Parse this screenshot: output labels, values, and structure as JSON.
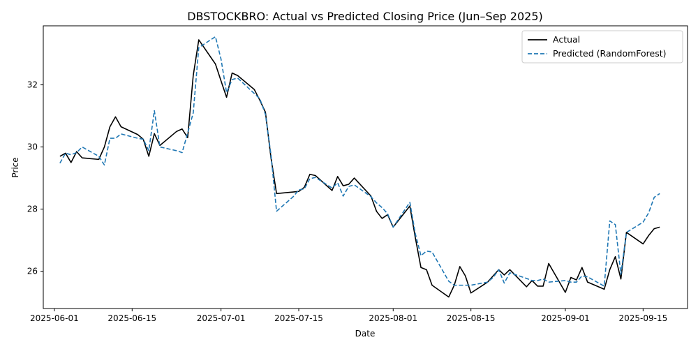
{
  "chart_data": {
    "type": "line",
    "title": "DBSTOCKBRO: Actual vs Predicted Closing Price (Jun–Sep 2025)",
    "xlabel": "Date",
    "ylabel": "Price",
    "xlim": [
      "2025-05-30",
      "2025-09-23"
    ],
    "ylim": [
      24.8,
      33.9
    ],
    "x_ticks": [
      "2025-06-01",
      "2025-06-15",
      "2025-07-01",
      "2025-07-15",
      "2025-08-01",
      "2025-08-15",
      "2025-09-01",
      "2025-09-15"
    ],
    "y_ticks": [
      26,
      28,
      30,
      32
    ],
    "grid": false,
    "legend_position": "top-right",
    "series": [
      {
        "name": "Actual",
        "color": "#000000",
        "style": "solid",
        "x": [
          "2025-06-02",
          "2025-06-03",
          "2025-06-04",
          "2025-06-05",
          "2025-06-06",
          "2025-06-09",
          "2025-06-10",
          "2025-06-11",
          "2025-06-12",
          "2025-06-13",
          "2025-06-16",
          "2025-06-17",
          "2025-06-18",
          "2025-06-19",
          "2025-06-20",
          "2025-06-23",
          "2025-06-24",
          "2025-06-25",
          "2025-06-26",
          "2025-06-27",
          "2025-06-30",
          "2025-07-01",
          "2025-07-02",
          "2025-07-03",
          "2025-07-04",
          "2025-07-07",
          "2025-07-08",
          "2025-07-09",
          "2025-07-10",
          "2025-07-11",
          "2025-07-14",
          "2025-07-15",
          "2025-07-16",
          "2025-07-17",
          "2025-07-18",
          "2025-07-21",
          "2025-07-22",
          "2025-07-23",
          "2025-07-24",
          "2025-07-25",
          "2025-07-28",
          "2025-07-29",
          "2025-07-30",
          "2025-07-31",
          "2025-08-01",
          "2025-08-04",
          "2025-08-05",
          "2025-08-06",
          "2025-08-07",
          "2025-08-08",
          "2025-08-11",
          "2025-08-12",
          "2025-08-13",
          "2025-08-14",
          "2025-08-15",
          "2025-08-18",
          "2025-08-19",
          "2025-08-20",
          "2025-08-21",
          "2025-08-22",
          "2025-08-25",
          "2025-08-26",
          "2025-08-27",
          "2025-08-28",
          "2025-08-29",
          "2025-09-01",
          "2025-09-02",
          "2025-09-03",
          "2025-09-04",
          "2025-09-05",
          "2025-09-08",
          "2025-09-09",
          "2025-09-10",
          "2025-09-11",
          "2025-09-12",
          "2025-09-15",
          "2025-09-16",
          "2025-09-17",
          "2025-09-18"
        ],
        "values": [
          29.7,
          29.8,
          29.5,
          29.85,
          29.65,
          29.6,
          30.0,
          30.65,
          30.97,
          30.65,
          30.4,
          30.25,
          29.7,
          30.43,
          30.05,
          30.5,
          30.58,
          30.3,
          32.3,
          33.45,
          32.67,
          32.13,
          31.6,
          32.38,
          32.3,
          31.85,
          31.5,
          31.12,
          29.65,
          28.5,
          28.55,
          28.57,
          28.7,
          29.12,
          29.08,
          28.6,
          29.05,
          28.75,
          28.8,
          29.0,
          28.42,
          27.93,
          27.7,
          27.82,
          27.42,
          28.1,
          27.07,
          26.12,
          26.05,
          25.55,
          25.17,
          25.55,
          26.15,
          25.85,
          25.3,
          25.65,
          25.85,
          26.05,
          25.88,
          26.05,
          25.5,
          25.7,
          25.52,
          25.52,
          26.25,
          25.32,
          25.8,
          25.72,
          26.12,
          25.65,
          25.42,
          26.05,
          26.47,
          25.75,
          27.25,
          26.88,
          27.15,
          27.37,
          27.42
        ]
      },
      {
        "name": "Predicted (RandomForest)",
        "color": "#1f77b4",
        "style": "dashed",
        "x": [
          "2025-06-02",
          "2025-06-03",
          "2025-06-04",
          "2025-06-05",
          "2025-06-06",
          "2025-06-09",
          "2025-06-10",
          "2025-06-11",
          "2025-06-12",
          "2025-06-13",
          "2025-06-16",
          "2025-06-17",
          "2025-06-18",
          "2025-06-19",
          "2025-06-20",
          "2025-06-23",
          "2025-06-24",
          "2025-06-25",
          "2025-06-26",
          "2025-06-27",
          "2025-06-30",
          "2025-07-01",
          "2025-07-02",
          "2025-07-03",
          "2025-07-04",
          "2025-07-07",
          "2025-07-08",
          "2025-07-09",
          "2025-07-10",
          "2025-07-11",
          "2025-07-14",
          "2025-07-15",
          "2025-07-16",
          "2025-07-17",
          "2025-07-18",
          "2025-07-21",
          "2025-07-22",
          "2025-07-23",
          "2025-07-24",
          "2025-07-25",
          "2025-07-28",
          "2025-07-29",
          "2025-07-30",
          "2025-07-31",
          "2025-08-01",
          "2025-08-04",
          "2025-08-05",
          "2025-08-06",
          "2025-08-07",
          "2025-08-08",
          "2025-08-11",
          "2025-08-12",
          "2025-08-13",
          "2025-08-14",
          "2025-08-15",
          "2025-08-18",
          "2025-08-19",
          "2025-08-20",
          "2025-08-21",
          "2025-08-22",
          "2025-08-25",
          "2025-08-26",
          "2025-08-27",
          "2025-08-28",
          "2025-08-29",
          "2025-09-01",
          "2025-09-02",
          "2025-09-03",
          "2025-09-04",
          "2025-09-05",
          "2025-09-08",
          "2025-09-09",
          "2025-09-10",
          "2025-09-11",
          "2025-09-12",
          "2025-09-15",
          "2025-09-16",
          "2025-09-17",
          "2025-09-18"
        ],
        "values": [
          29.48,
          29.8,
          29.75,
          29.82,
          30.0,
          29.7,
          29.42,
          30.28,
          30.28,
          30.42,
          30.28,
          30.25,
          29.88,
          31.17,
          30.0,
          29.88,
          29.82,
          30.45,
          31.1,
          33.2,
          33.55,
          32.83,
          31.75,
          32.17,
          32.22,
          31.72,
          31.55,
          31.05,
          29.75,
          27.93,
          28.4,
          28.62,
          28.65,
          28.98,
          29.02,
          28.68,
          28.85,
          28.42,
          28.73,
          28.78,
          28.4,
          28.2,
          28.05,
          27.85,
          27.42,
          28.22,
          27.2,
          26.5,
          26.65,
          26.62,
          25.68,
          25.55,
          25.55,
          25.55,
          25.55,
          25.65,
          25.8,
          26.05,
          25.62,
          25.95,
          25.77,
          25.7,
          25.7,
          25.75,
          25.65,
          25.7,
          25.65,
          25.65,
          25.85,
          25.82,
          25.52,
          27.62,
          27.5,
          25.9,
          27.25,
          27.58,
          27.88,
          28.38,
          28.5
        ]
      }
    ]
  }
}
